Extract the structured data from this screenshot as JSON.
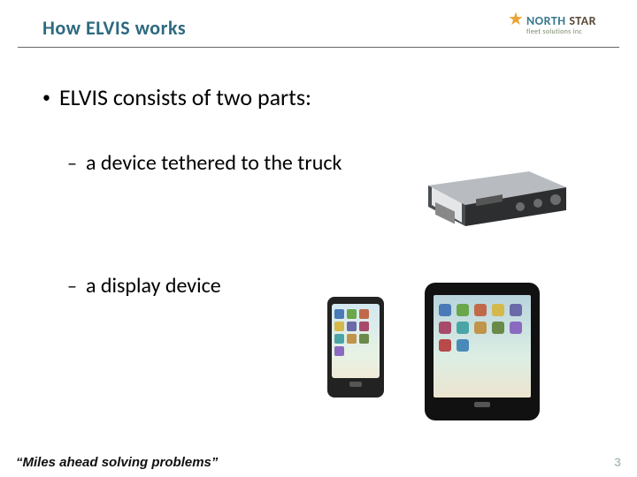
{
  "header": {
    "title": "How ELVIS works",
    "title_color": "#2e6a7f"
  },
  "logo": {
    "brand_first": "NORTH",
    "brand_second": "STAR",
    "subtitle": "fleet solutions inc",
    "star_color": "#e8a437",
    "first_color": "#3b7a8f",
    "second_color": "#5a4a3a"
  },
  "content": {
    "main_bullet": "ELVIS consists of two parts:",
    "sub_bullets": [
      " a device tethered to the truck",
      "a display device"
    ]
  },
  "device_image": {
    "description": "vehicle-telematics-unit"
  },
  "phone": {
    "icon_colors": [
      "#4a7ab8",
      "#6aa64a",
      "#c06a4a",
      "#d4b84a",
      "#6a6aa8",
      "#a84a6a",
      "#4aa6a6",
      "#c0944a",
      "#6a8a4a",
      "#8a6ac0"
    ]
  },
  "tablet": {
    "icon_colors": [
      "#4a7ab8",
      "#6aa64a",
      "#c06a4a",
      "#d4b84a",
      "#6a6aa8",
      "#a84a6a",
      "#4aa6a6",
      "#c0944a",
      "#6a8a4a",
      "#8a6ac0",
      "#b84a4a",
      "#4a8ab8"
    ]
  },
  "footer": {
    "tagline": "“Miles ahead solving problems”",
    "tagline_color": "#111111",
    "page_number": "3",
    "page_number_color": "#b0c4c0"
  }
}
